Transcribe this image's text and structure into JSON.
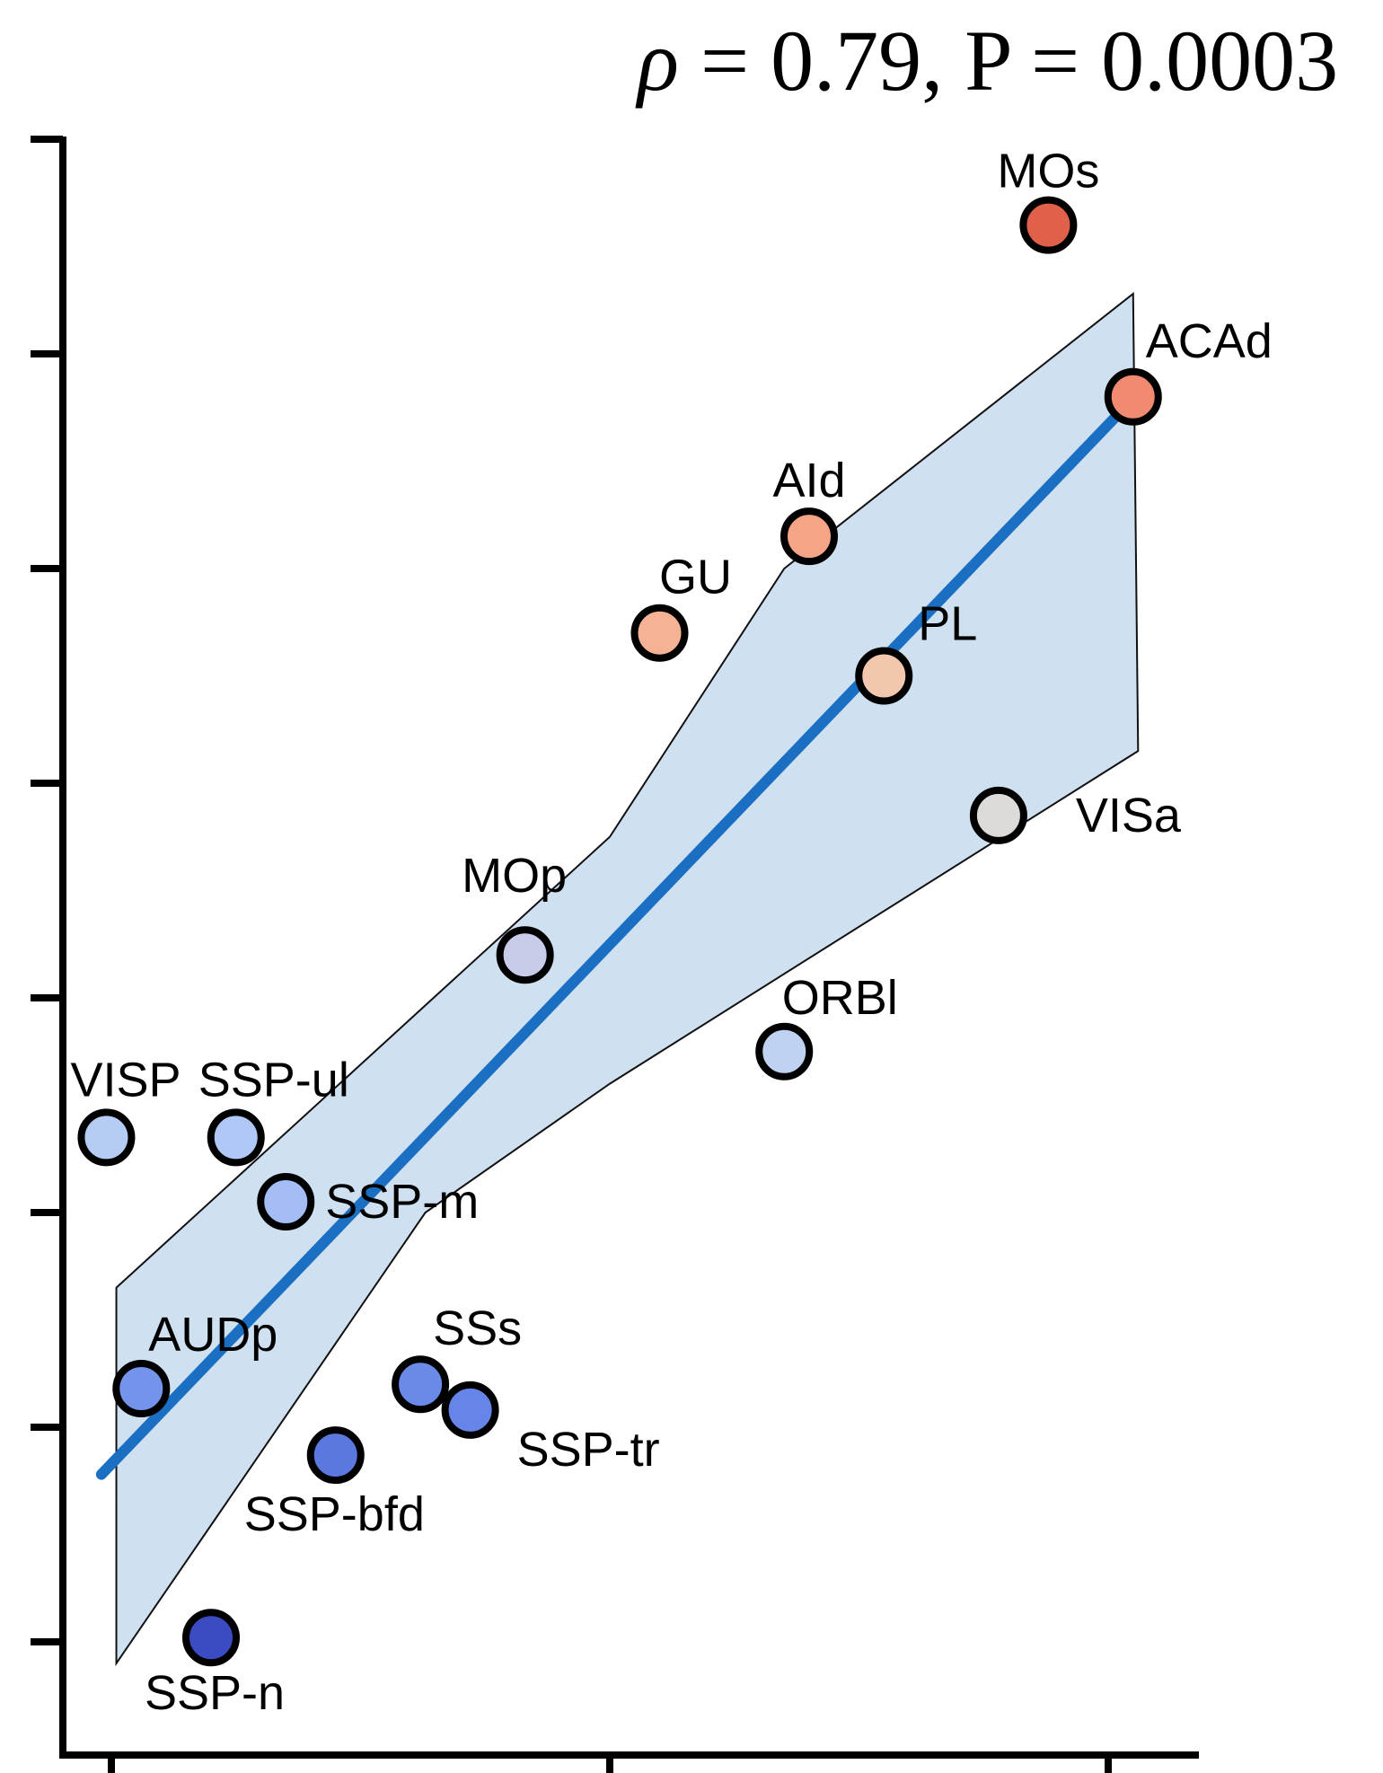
{
  "chart_data": {
    "type": "scatter",
    "title": "",
    "xlabel": "",
    "ylabel": "",
    "x_ticks": [
      0,
      1,
      2
    ],
    "y_ticks": [
      0,
      1,
      2,
      3,
      4,
      5,
      6,
      7
    ],
    "xlim": [
      -0.1,
      2.18
    ],
    "ylim": [
      -0.3,
      7.15
    ],
    "grid": false,
    "stats": {
      "rho_symbol": "ρ",
      "rho_value": "0.79",
      "p_symbol": "P",
      "p_value": "0.0003"
    },
    "fit": {
      "line": [
        [
          -0.02,
          0.78
        ],
        [
          2.07,
          5.84
        ]
      ],
      "ci_upper": [
        [
          0.01,
          1.65
        ],
        [
          1.0,
          3.75
        ],
        [
          1.35,
          5.0
        ],
        [
          2.05,
          6.28
        ]
      ],
      "ci_lower": [
        [
          0.01,
          -0.1
        ],
        [
          0.63,
          2.0
        ],
        [
          1.0,
          2.6
        ],
        [
          2.06,
          4.15
        ]
      ]
    },
    "points": [
      {
        "label": "MOs",
        "x": 1.88,
        "y": 6.6,
        "color": "#e0604a"
      },
      {
        "label": "ACAd",
        "x": 2.05,
        "y": 5.8,
        "color": "#f08a70"
      },
      {
        "label": "AId",
        "x": 1.4,
        "y": 5.15,
        "color": "#f4a585"
      },
      {
        "label": "GU",
        "x": 1.1,
        "y": 4.7,
        "color": "#f5b295"
      },
      {
        "label": "PL",
        "x": 1.55,
        "y": 4.5,
        "color": "#f3c6ae"
      },
      {
        "label": "VISa",
        "x": 1.78,
        "y": 3.85,
        "color": "#dedad8"
      },
      {
        "label": "MOp",
        "x": 0.83,
        "y": 3.2,
        "color": "#c8cce8"
      },
      {
        "label": "ORBl",
        "x": 1.35,
        "y": 2.75,
        "color": "#c0d2f2"
      },
      {
        "label": "VISP",
        "x": -0.01,
        "y": 2.35,
        "color": "#b5ccf5"
      },
      {
        "label": "SSP-ul",
        "x": 0.25,
        "y": 2.35,
        "color": "#b0c8f6"
      },
      {
        "label": "SSP-m",
        "x": 0.35,
        "y": 2.05,
        "color": "#a4bef5"
      },
      {
        "label": "AUDp",
        "x": 0.06,
        "y": 1.18,
        "color": "#7493ea"
      },
      {
        "label": "SSs",
        "x": 0.62,
        "y": 1.2,
        "color": "#6a8ae8"
      },
      {
        "label": "SSP-tr",
        "x": 0.72,
        "y": 1.08,
        "color": "#6585e8"
      },
      {
        "label": "SSP-bfd",
        "x": 0.45,
        "y": 0.87,
        "color": "#5a78e0"
      },
      {
        "label": "SSP-n",
        "x": 0.2,
        "y": 0.02,
        "color": "#3b4cc2"
      }
    ]
  }
}
